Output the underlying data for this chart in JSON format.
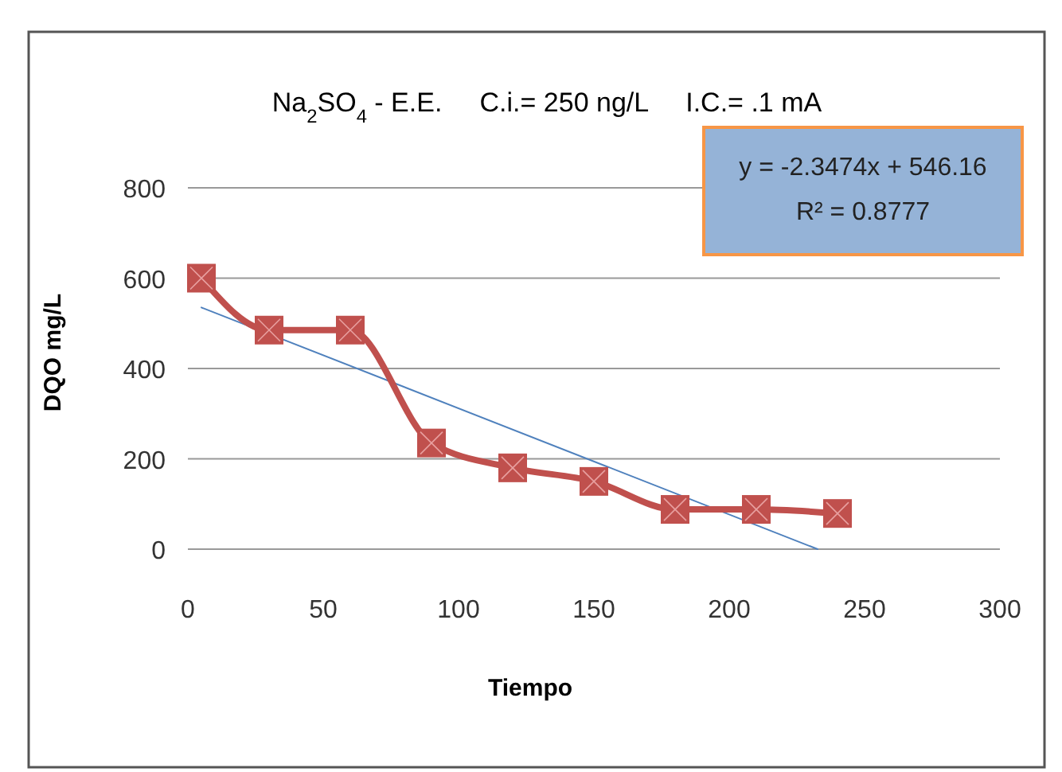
{
  "chart_data": {
    "type": "line",
    "title": "Na$_{2}$SO$_{4}$ - E.E.     C.i.= 250 ng/L     I.C.= .1 mA",
    "xlabel": "Tiempo",
    "ylabel": "DQO mg/L",
    "x": [
      5,
      30,
      60,
      90,
      120,
      150,
      180,
      210,
      240
    ],
    "series": [
      {
        "color": "#c0504d",
        "values": [
          600,
          485,
          485,
          235,
          180,
          150,
          88,
          88,
          79
        ],
        "marker": "square"
      },
      {
        "type": "line",
        "color": "#4f81bd",
        "x": [
          5,
          232.66
        ],
        "values": [
          535,
          0
        ],
        "marker": "none"
      }
    ],
    "xlim": [
      0,
      300
    ],
    "xticks": [
      0,
      50,
      100,
      150,
      200,
      250,
      300
    ],
    "ylim": [
      0,
      800
    ],
    "yticks": [
      0,
      200,
      400,
      600,
      800
    ],
    "grid": "y",
    "annotations": [
      "y = -2.3474x + 546.16",
      "R² = 0.8777"
    ]
  }
}
